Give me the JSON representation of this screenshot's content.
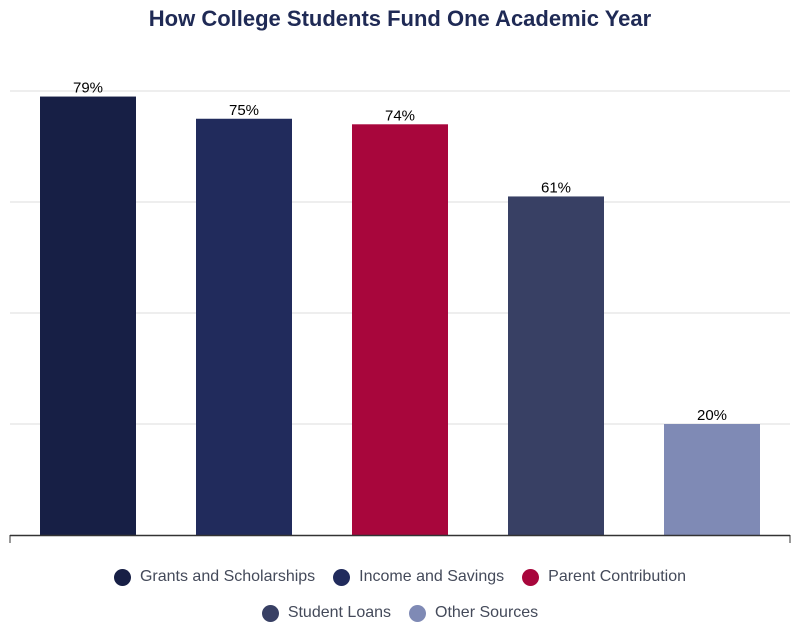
{
  "chart_data": {
    "type": "bar",
    "title": "How College Students Fund One Academic Year",
    "categories": [
      "Grants and Scholarships",
      "Income and Savings",
      "Parent Contribution",
      "Student Loans",
      "Other Sources"
    ],
    "values": [
      79,
      75,
      74,
      61,
      20
    ],
    "value_labels": [
      "79%",
      "75%",
      "74%",
      "61%",
      "20%"
    ],
    "colors": [
      "#171f45",
      "#212b5c",
      "#a8063c",
      "#384064",
      "#7f8ab5"
    ],
    "ylim": [
      0,
      80
    ],
    "grid": true,
    "legend_position": "bottom"
  }
}
